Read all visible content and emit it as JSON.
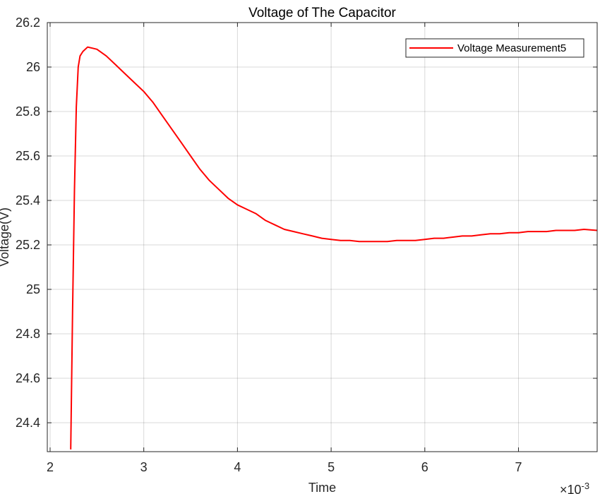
{
  "chart_data": {
    "type": "line",
    "title": "Voltage of The Capacitor",
    "xlabel": "Time",
    "ylabel": "Voltage(V)",
    "x_exponent_label": "×10",
    "x_exponent_power": "-3",
    "xlim": [
      0.00197,
      0.00784
    ],
    "ylim": [
      24.27,
      26.2
    ],
    "x_ticks": [
      0.002,
      0.003,
      0.004,
      0.005,
      0.006,
      0.007
    ],
    "x_tick_labels": [
      "2",
      "3",
      "4",
      "5",
      "6",
      "7"
    ],
    "y_ticks": [
      24.4,
      24.6,
      24.8,
      25.0,
      25.2,
      25.4,
      25.6,
      25.8,
      26.0,
      26.2
    ],
    "y_tick_labels": [
      "24.4",
      "24.6",
      "24.8",
      "25",
      "25.2",
      "25.4",
      "25.6",
      "25.8",
      "26",
      "26.2"
    ],
    "grid": true,
    "legend_position": "top-right",
    "series": [
      {
        "name": "Voltage Measurement5",
        "color": "#ff0000",
        "x": [
          0.00222,
          0.00224,
          0.00226,
          0.00228,
          0.0023,
          0.00232,
          0.00235,
          0.0024,
          0.00245,
          0.0025,
          0.0026,
          0.0027,
          0.0028,
          0.0029,
          0.003,
          0.0031,
          0.0032,
          0.0033,
          0.0034,
          0.0035,
          0.0036,
          0.0037,
          0.0038,
          0.0039,
          0.004,
          0.0041,
          0.0042,
          0.0043,
          0.0044,
          0.0045,
          0.0046,
          0.0047,
          0.0048,
          0.0049,
          0.005,
          0.0051,
          0.0052,
          0.0053,
          0.0054,
          0.0055,
          0.0056,
          0.0057,
          0.0058,
          0.0059,
          0.006,
          0.0061,
          0.0062,
          0.0063,
          0.0064,
          0.0065,
          0.0066,
          0.0067,
          0.0068,
          0.0069,
          0.007,
          0.0071,
          0.0072,
          0.0073,
          0.0074,
          0.0075,
          0.0076,
          0.0077,
          0.00784
        ],
        "y": [
          24.28,
          24.9,
          25.45,
          25.82,
          26.0,
          26.05,
          26.07,
          26.09,
          26.085,
          26.08,
          26.05,
          26.01,
          25.97,
          25.93,
          25.89,
          25.84,
          25.78,
          25.72,
          25.66,
          25.6,
          25.54,
          25.49,
          25.45,
          25.41,
          25.38,
          25.36,
          25.34,
          25.31,
          25.29,
          25.27,
          25.26,
          25.25,
          25.24,
          25.23,
          25.225,
          25.22,
          25.22,
          25.215,
          25.215,
          25.215,
          25.215,
          25.22,
          25.22,
          25.22,
          25.225,
          25.23,
          25.23,
          25.235,
          25.24,
          25.24,
          25.245,
          25.25,
          25.25,
          25.255,
          25.255,
          25.26,
          25.26,
          25.26,
          25.265,
          25.265,
          25.265,
          25.27,
          25.265
        ]
      }
    ]
  }
}
